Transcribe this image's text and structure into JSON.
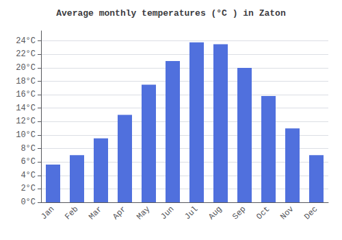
{
  "chart_data": {
    "type": "bar",
    "title": "Average monthly temperatures (°C ) in Zaton",
    "categories": [
      "Jan",
      "Feb",
      "Mar",
      "Apr",
      "May",
      "Jun",
      "Jul",
      "Aug",
      "Sep",
      "Oct",
      "Nov",
      "Dec"
    ],
    "values": [
      5.6,
      7.0,
      9.5,
      13.0,
      17.5,
      21.0,
      23.8,
      23.5,
      20.0,
      15.8,
      11.0,
      7.0
    ],
    "ylim": [
      0,
      25.5
    ],
    "yticks": [
      {
        "value": 0,
        "label": "0°C"
      },
      {
        "value": 2,
        "label": "2°C"
      },
      {
        "value": 4,
        "label": "4°C"
      },
      {
        "value": 6,
        "label": "6°C"
      },
      {
        "value": 8,
        "label": "8°C"
      },
      {
        "value": 10,
        "label": "10°C"
      },
      {
        "value": 12,
        "label": "12°C"
      },
      {
        "value": 14,
        "label": "14°C"
      },
      {
        "value": 16,
        "label": "16°C"
      },
      {
        "value": 18,
        "label": "18°C"
      },
      {
        "value": 20,
        "label": "20°C"
      },
      {
        "value": 22,
        "label": "22°C"
      },
      {
        "value": 24,
        "label": "24°C"
      }
    ],
    "grid": true
  }
}
